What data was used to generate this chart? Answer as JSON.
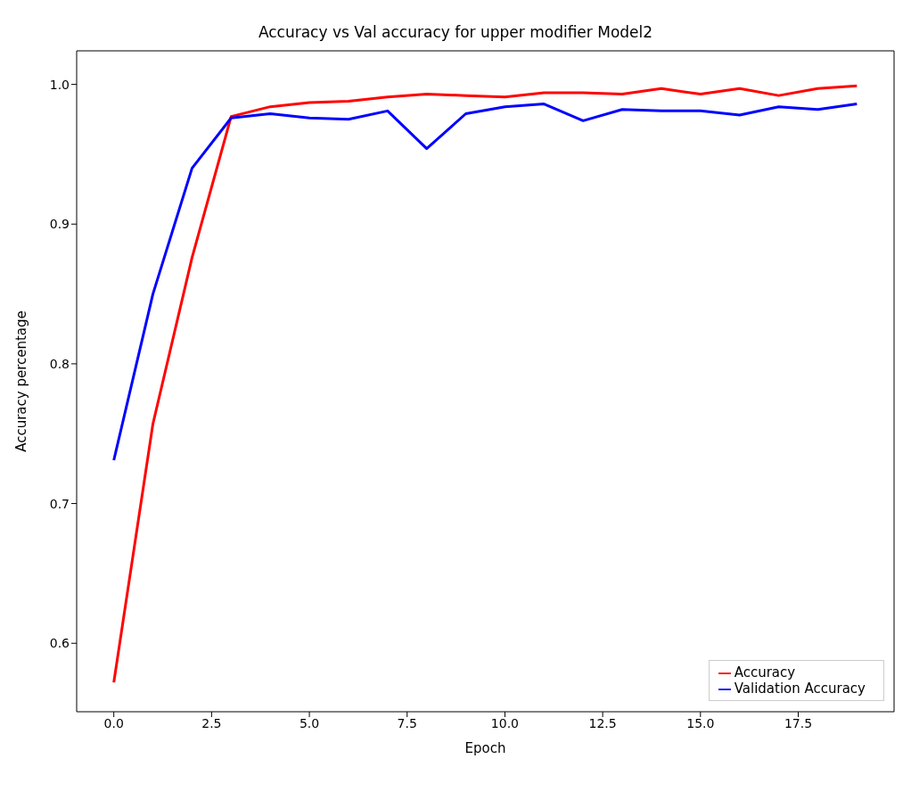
{
  "chart_data": {
    "type": "line",
    "title": "Accuracy vs Val accuracy for upper modifier Model2",
    "xlabel": "Epoch",
    "ylabel": "Accuracy percentage",
    "x": [
      0,
      1,
      2,
      3,
      4,
      5,
      6,
      7,
      8,
      9,
      10,
      11,
      12,
      13,
      14,
      15,
      16,
      17,
      18,
      19
    ],
    "series": [
      {
        "name": "Accuracy",
        "color": "#ff0000",
        "values": [
          0.572,
          0.757,
          0.876,
          0.977,
          0.984,
          0.987,
          0.988,
          0.991,
          0.993,
          0.992,
          0.991,
          0.994,
          0.994,
          0.993,
          0.997,
          0.993,
          0.997,
          0.992,
          0.997,
          0.999
        ]
      },
      {
        "name": "Validation Accuracy",
        "color": "#0000ff",
        "values": [
          0.731,
          0.85,
          0.94,
          0.976,
          0.979,
          0.976,
          0.975,
          0.981,
          0.954,
          0.979,
          0.984,
          0.986,
          0.974,
          0.982,
          0.981,
          0.981,
          0.978,
          0.984,
          0.982,
          0.986
        ]
      }
    ],
    "xlim": [
      -0.95,
      19.95
    ],
    "xticks": [
      {
        "value": 0,
        "label": "0.0"
      },
      {
        "value": 2.5,
        "label": "2.5"
      },
      {
        "value": 5,
        "label": "5.0"
      },
      {
        "value": 7.5,
        "label": "7.5"
      },
      {
        "value": 10,
        "label": "10.0"
      },
      {
        "value": 12.5,
        "label": "12.5"
      },
      {
        "value": 15,
        "label": "15.0"
      },
      {
        "value": 17.5,
        "label": "17.5"
      }
    ],
    "ylim": [
      0.551,
      1.024
    ],
    "yticks": [
      0.6,
      0.7,
      0.8,
      0.9,
      {
        "value": 1,
        "label": "1.0"
      }
    ],
    "grid": false,
    "legend": "bottom right",
    "marker": "none",
    "line_style": "solid"
  }
}
